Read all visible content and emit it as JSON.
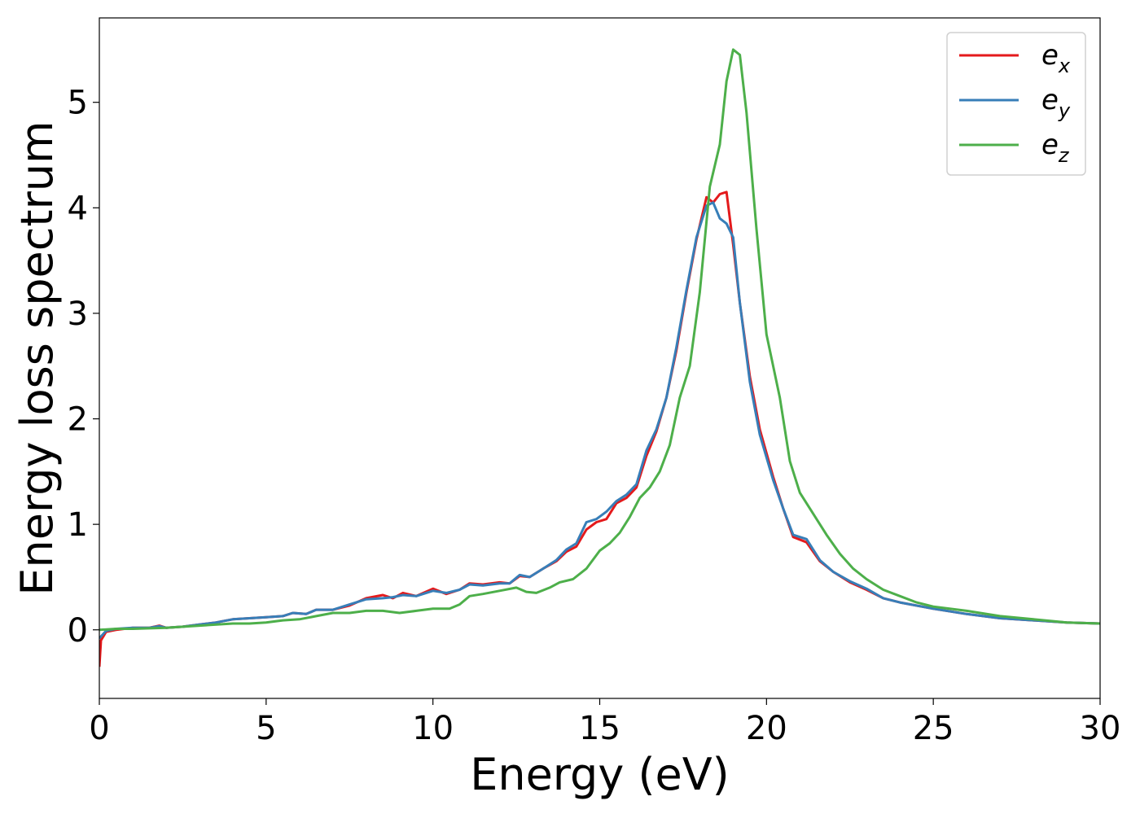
{
  "chart_data": {
    "type": "line",
    "title": "",
    "xlabel": "Energy (eV)",
    "ylabel": "Energy loss spectrum",
    "xlim": [
      0,
      30
    ],
    "ylim": [
      -0.65,
      5.8
    ],
    "xticks": [
      0,
      5,
      10,
      15,
      20,
      25,
      30
    ],
    "yticks": [
      0,
      1,
      2,
      3,
      4,
      5
    ],
    "grid": false,
    "legend": "top-right",
    "series": [
      {
        "name": "e",
        "subscript": "x",
        "color": "#e41a1c",
        "points": [
          [
            0,
            -0.35
          ],
          [
            0.05,
            -0.1
          ],
          [
            0.2,
            -0.02
          ],
          [
            0.5,
            0
          ],
          [
            1,
            0.02
          ],
          [
            1.5,
            0.02
          ],
          [
            1.8,
            0.04
          ],
          [
            2,
            0.02
          ],
          [
            2.5,
            0.03
          ],
          [
            3,
            0.05
          ],
          [
            3.5,
            0.07
          ],
          [
            4,
            0.1
          ],
          [
            4.5,
            0.11
          ],
          [
            5,
            0.12
          ],
          [
            5.5,
            0.13
          ],
          [
            5.8,
            0.16
          ],
          [
            6.2,
            0.15
          ],
          [
            6.5,
            0.19
          ],
          [
            7,
            0.19
          ],
          [
            7.5,
            0.23
          ],
          [
            8,
            0.3
          ],
          [
            8.5,
            0.33
          ],
          [
            8.8,
            0.3
          ],
          [
            9.1,
            0.35
          ],
          [
            9.5,
            0.32
          ],
          [
            10,
            0.39
          ],
          [
            10.4,
            0.34
          ],
          [
            10.8,
            0.38
          ],
          [
            11.1,
            0.44
          ],
          [
            11.5,
            0.43
          ],
          [
            12,
            0.45
          ],
          [
            12.3,
            0.44
          ],
          [
            12.6,
            0.51
          ],
          [
            12.9,
            0.5
          ],
          [
            13.3,
            0.58
          ],
          [
            13.7,
            0.65
          ],
          [
            14,
            0.74
          ],
          [
            14.3,
            0.79
          ],
          [
            14.6,
            0.95
          ],
          [
            14.9,
            1.02
          ],
          [
            15.2,
            1.05
          ],
          [
            15.5,
            1.2
          ],
          [
            15.8,
            1.25
          ],
          [
            16.1,
            1.35
          ],
          [
            16.4,
            1.65
          ],
          [
            16.7,
            1.88
          ],
          [
            17,
            2.2
          ],
          [
            17.3,
            2.65
          ],
          [
            17.6,
            3.2
          ],
          [
            17.9,
            3.7
          ],
          [
            18.2,
            4.1
          ],
          [
            18.4,
            4.05
          ],
          [
            18.6,
            4.13
          ],
          [
            18.8,
            4.15
          ],
          [
            19,
            3.65
          ],
          [
            19.2,
            3.1
          ],
          [
            19.5,
            2.4
          ],
          [
            19.8,
            1.9
          ],
          [
            20.2,
            1.45
          ],
          [
            20.5,
            1.15
          ],
          [
            20.8,
            0.88
          ],
          [
            21.2,
            0.83
          ],
          [
            21.6,
            0.65
          ],
          [
            22,
            0.55
          ],
          [
            22.5,
            0.45
          ],
          [
            23,
            0.38
          ],
          [
            23.5,
            0.3
          ],
          [
            24,
            0.26
          ],
          [
            25,
            0.2
          ],
          [
            26,
            0.15
          ],
          [
            27,
            0.11
          ],
          [
            28,
            0.09
          ],
          [
            29,
            0.07
          ],
          [
            30,
            0.06
          ]
        ]
      },
      {
        "name": "e",
        "subscript": "y",
        "color": "#377eb8",
        "points": [
          [
            0,
            -0.08
          ],
          [
            0.2,
            -0.01
          ],
          [
            0.5,
            0.01
          ],
          [
            1,
            0.02
          ],
          [
            1.5,
            0.02
          ],
          [
            1.8,
            0.035
          ],
          [
            2,
            0.02
          ],
          [
            2.5,
            0.03
          ],
          [
            3,
            0.05
          ],
          [
            3.5,
            0.07
          ],
          [
            4,
            0.1
          ],
          [
            4.5,
            0.11
          ],
          [
            5,
            0.12
          ],
          [
            5.5,
            0.13
          ],
          [
            5.8,
            0.16
          ],
          [
            6.2,
            0.15
          ],
          [
            6.5,
            0.19
          ],
          [
            7,
            0.19
          ],
          [
            7.5,
            0.24
          ],
          [
            8,
            0.29
          ],
          [
            8.5,
            0.3
          ],
          [
            8.8,
            0.31
          ],
          [
            9.1,
            0.33
          ],
          [
            9.5,
            0.32
          ],
          [
            10,
            0.37
          ],
          [
            10.4,
            0.35
          ],
          [
            10.8,
            0.38
          ],
          [
            11.1,
            0.43
          ],
          [
            11.5,
            0.42
          ],
          [
            12,
            0.44
          ],
          [
            12.3,
            0.44
          ],
          [
            12.6,
            0.52
          ],
          [
            12.9,
            0.5
          ],
          [
            13.3,
            0.58
          ],
          [
            13.7,
            0.66
          ],
          [
            14,
            0.76
          ],
          [
            14.3,
            0.82
          ],
          [
            14.6,
            1.02
          ],
          [
            14.9,
            1.05
          ],
          [
            15.2,
            1.12
          ],
          [
            15.5,
            1.22
          ],
          [
            15.8,
            1.28
          ],
          [
            16.1,
            1.38
          ],
          [
            16.4,
            1.7
          ],
          [
            16.7,
            1.9
          ],
          [
            17,
            2.2
          ],
          [
            17.3,
            2.68
          ],
          [
            17.6,
            3.22
          ],
          [
            17.9,
            3.72
          ],
          [
            18.2,
            4.02
          ],
          [
            18.4,
            4.05
          ],
          [
            18.6,
            3.9
          ],
          [
            18.8,
            3.85
          ],
          [
            19,
            3.72
          ],
          [
            19.2,
            3.1
          ],
          [
            19.5,
            2.35
          ],
          [
            19.8,
            1.85
          ],
          [
            20.2,
            1.42
          ],
          [
            20.5,
            1.15
          ],
          [
            20.8,
            0.9
          ],
          [
            21.2,
            0.86
          ],
          [
            21.6,
            0.66
          ],
          [
            22,
            0.55
          ],
          [
            22.5,
            0.46
          ],
          [
            23,
            0.39
          ],
          [
            23.5,
            0.3
          ],
          [
            24,
            0.26
          ],
          [
            25,
            0.2
          ],
          [
            26,
            0.15
          ],
          [
            27,
            0.11
          ],
          [
            28,
            0.09
          ],
          [
            29,
            0.07
          ],
          [
            30,
            0.06
          ]
        ]
      },
      {
        "name": "e",
        "subscript": "z",
        "color": "#4daf4a",
        "points": [
          [
            0,
            0
          ],
          [
            0.5,
            0.01
          ],
          [
            1,
            0.01
          ],
          [
            2,
            0.02
          ],
          [
            3,
            0.04
          ],
          [
            4,
            0.06
          ],
          [
            4.5,
            0.06
          ],
          [
            5,
            0.07
          ],
          [
            5.5,
            0.09
          ],
          [
            6,
            0.1
          ],
          [
            6.5,
            0.13
          ],
          [
            7,
            0.16
          ],
          [
            7.5,
            0.16
          ],
          [
            8,
            0.18
          ],
          [
            8.5,
            0.18
          ],
          [
            9,
            0.16
          ],
          [
            9.5,
            0.18
          ],
          [
            10,
            0.2
          ],
          [
            10.5,
            0.2
          ],
          [
            10.8,
            0.24
          ],
          [
            11.1,
            0.32
          ],
          [
            11.5,
            0.34
          ],
          [
            12,
            0.37
          ],
          [
            12.5,
            0.4
          ],
          [
            12.8,
            0.36
          ],
          [
            13.1,
            0.35
          ],
          [
            13.5,
            0.4
          ],
          [
            13.8,
            0.45
          ],
          [
            14.2,
            0.48
          ],
          [
            14.6,
            0.58
          ],
          [
            15,
            0.75
          ],
          [
            15.3,
            0.82
          ],
          [
            15.6,
            0.92
          ],
          [
            15.9,
            1.07
          ],
          [
            16.2,
            1.25
          ],
          [
            16.5,
            1.35
          ],
          [
            16.8,
            1.5
          ],
          [
            17.1,
            1.75
          ],
          [
            17.4,
            2.2
          ],
          [
            17.7,
            2.5
          ],
          [
            18,
            3.2
          ],
          [
            18.3,
            4.2
          ],
          [
            18.6,
            4.6
          ],
          [
            18.8,
            5.2
          ],
          [
            19.0,
            5.5
          ],
          [
            19.2,
            5.45
          ],
          [
            19.4,
            4.9
          ],
          [
            19.7,
            3.8
          ],
          [
            20,
            2.8
          ],
          [
            20.4,
            2.2
          ],
          [
            20.7,
            1.6
          ],
          [
            21,
            1.3
          ],
          [
            21.4,
            1.1
          ],
          [
            21.8,
            0.9
          ],
          [
            22.2,
            0.72
          ],
          [
            22.6,
            0.58
          ],
          [
            23,
            0.48
          ],
          [
            23.5,
            0.38
          ],
          [
            24,
            0.32
          ],
          [
            24.5,
            0.26
          ],
          [
            25,
            0.22
          ],
          [
            26,
            0.18
          ],
          [
            27,
            0.13
          ],
          [
            28,
            0.1
          ],
          [
            29,
            0.07
          ],
          [
            30,
            0.06
          ]
        ]
      }
    ]
  }
}
